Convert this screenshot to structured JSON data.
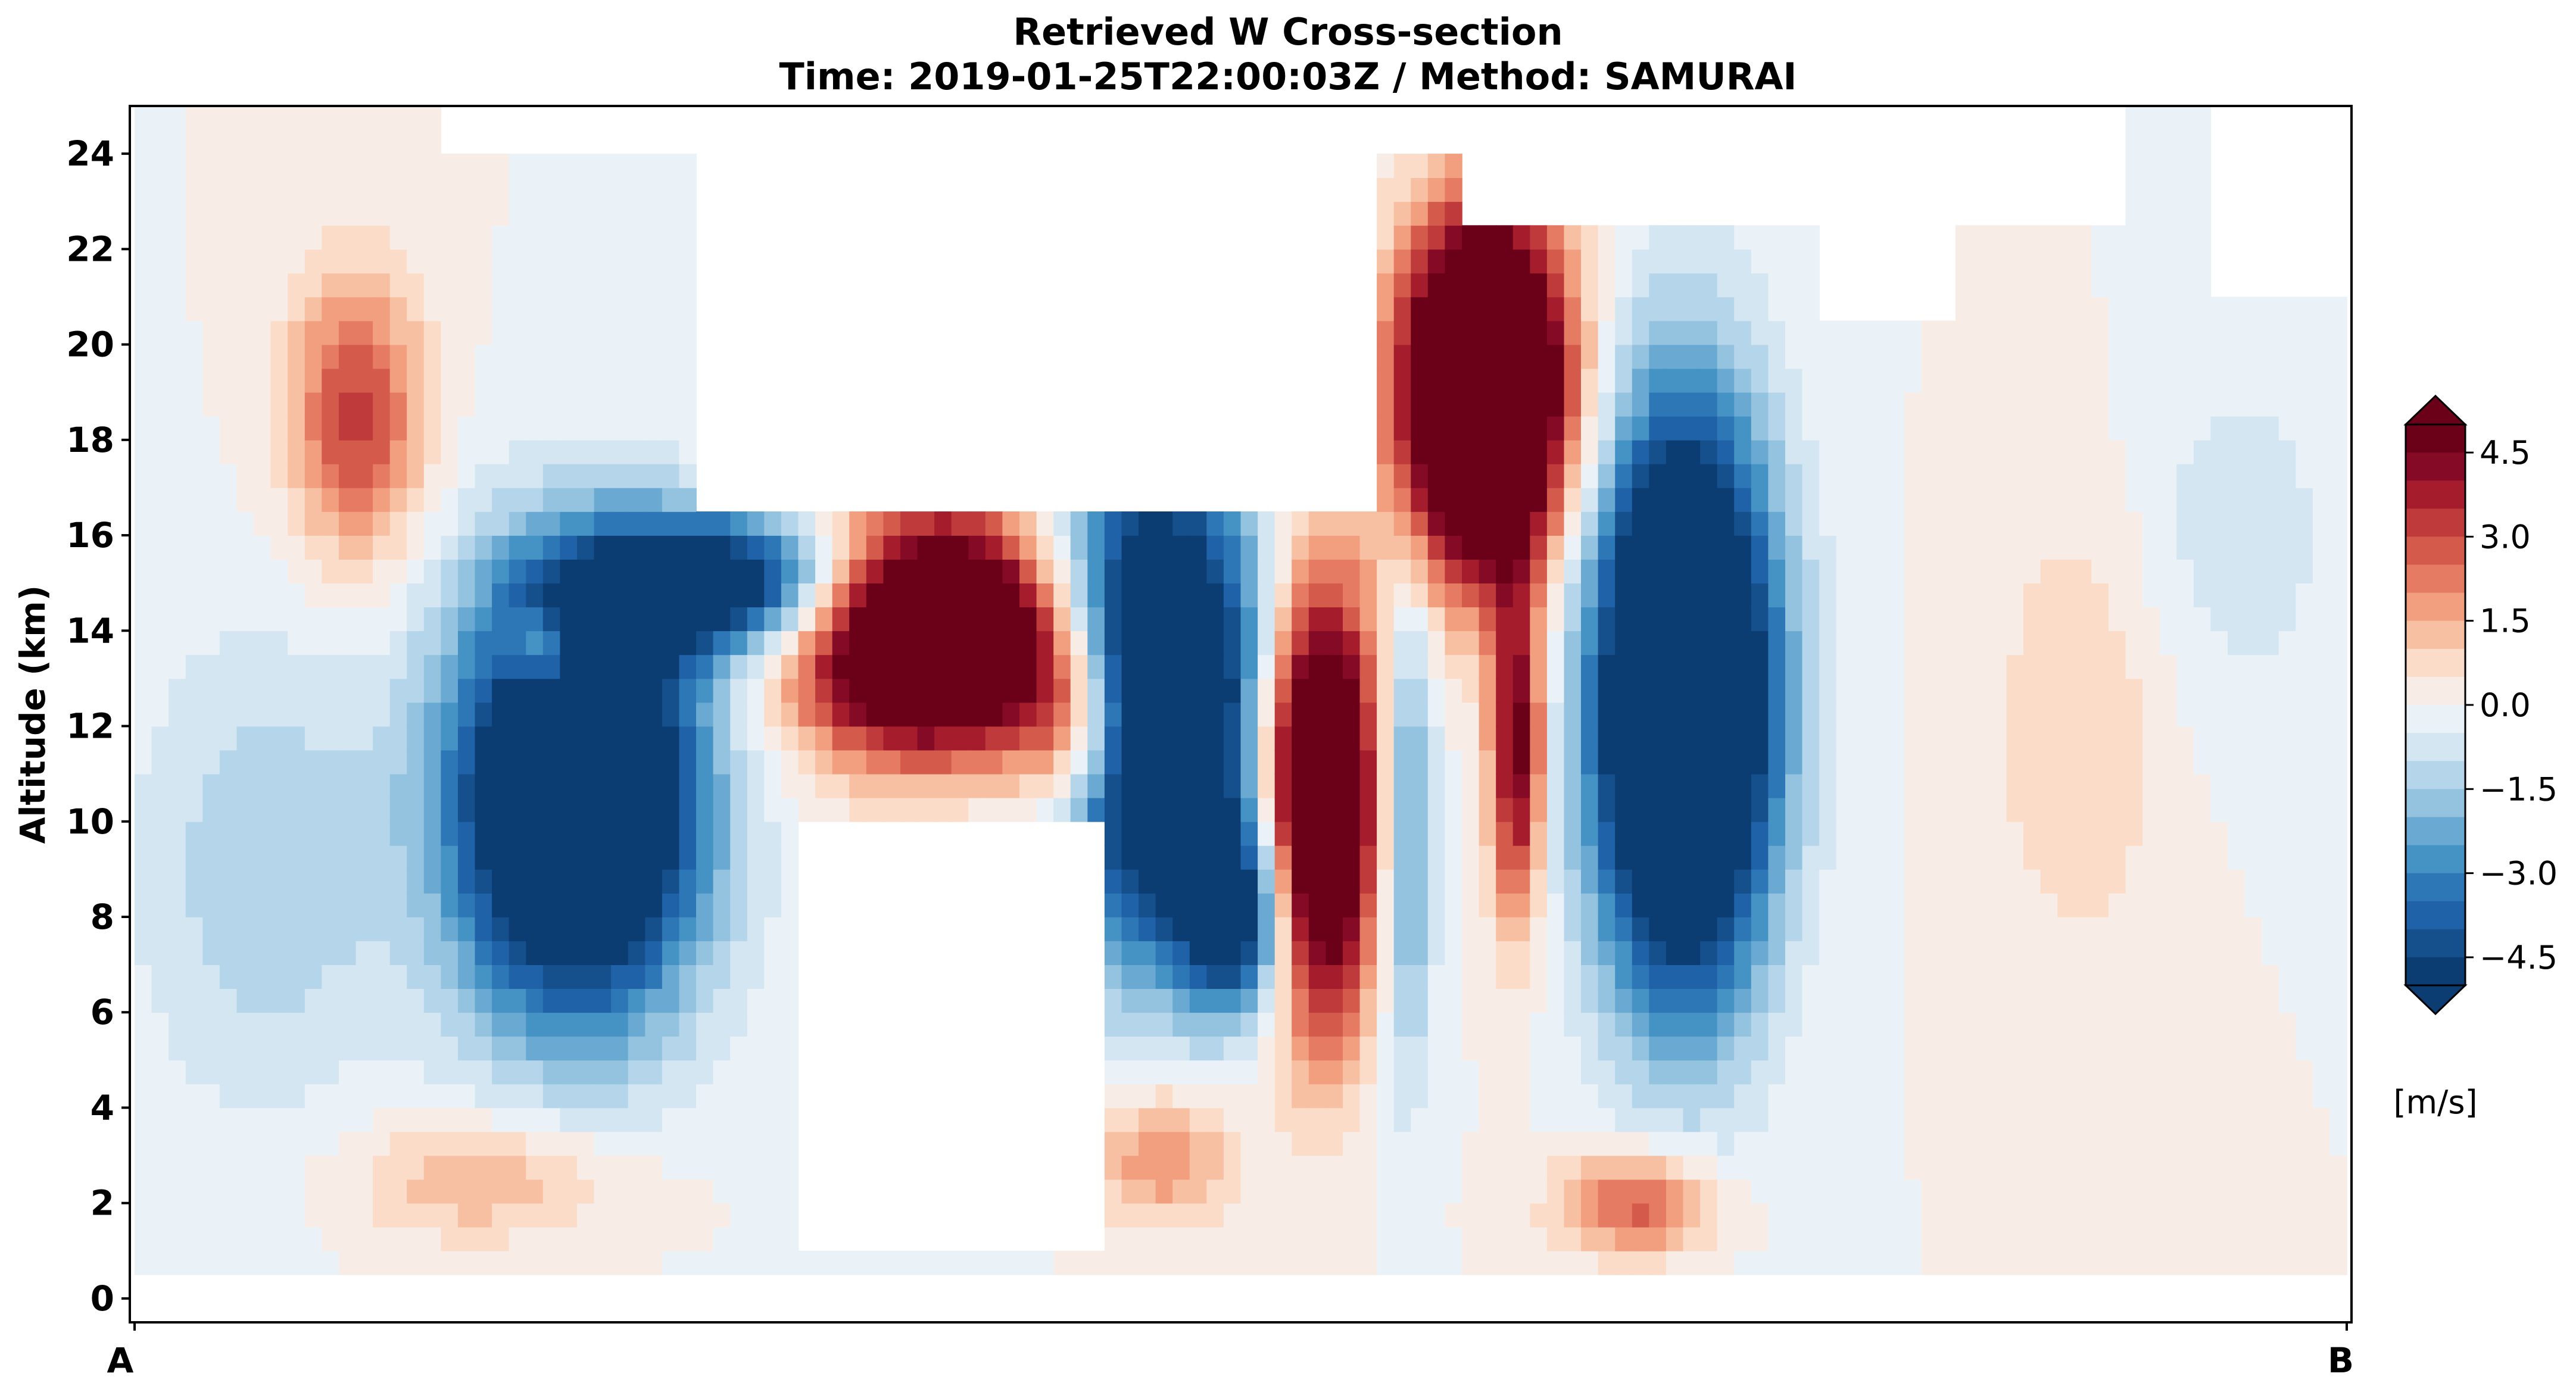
{
  "chart_data": {
    "type": "heatmap",
    "title": "Retrieved W Cross-section",
    "subtitle": "Time: 2019-01-25T22:00:03Z / Method: SAMURAI",
    "xlabel": "",
    "ylabel": "Altitude (km)",
    "x_ticks": [
      "A",
      "B"
    ],
    "y_ticks": [
      0,
      2,
      4,
      6,
      8,
      10,
      12,
      14,
      16,
      18,
      20,
      22,
      24
    ],
    "ylim": [
      -0.5,
      25
    ],
    "grid": false,
    "colorbar": {
      "label": "[m/s]",
      "ticks": [
        "4.5",
        "3.0",
        "1.5",
        "0.0",
        "−1.5",
        "−3.0",
        "−4.5"
      ],
      "tick_values": [
        4.5,
        3.0,
        1.5,
        0.0,
        -1.5,
        -3.0,
        -4.5
      ],
      "range": [
        -5,
        5
      ],
      "levels": 20,
      "extend": "both",
      "colors": [
        "#0b3d73",
        "#154f8c",
        "#1f62a8",
        "#2e77b6",
        "#4592c5",
        "#6aa9d1",
        "#93c3df",
        "#b5d6ea",
        "#d3e6f1",
        "#eaf2f7",
        "#f8ede6",
        "#fbdcc8",
        "#f8c0a3",
        "#f29f80",
        "#e57b62",
        "#d45a4b",
        "#be3a3b",
        "#a51d2d",
        "#840a25",
        "#6b0019"
      ]
    },
    "features": [
      {
        "kind": "downdraft",
        "x_frac": 0.2,
        "z_km": 10.5,
        "w": -5.0
      },
      {
        "kind": "updraft",
        "x_frac": 0.36,
        "z_km": 14.2,
        "w": 5.0
      },
      {
        "kind": "downdraft",
        "x_frac": 0.46,
        "z_km": 11.0,
        "w": -5.0
      },
      {
        "kind": "updraft",
        "x_frac": 0.54,
        "z_km": 11.0,
        "w": 5.0
      },
      {
        "kind": "updraft",
        "x_frac": 0.61,
        "z_km": 17.5,
        "w": 5.0
      },
      {
        "kind": "downdraft",
        "x_frac": 0.7,
        "z_km": 12.0,
        "w": -5.0
      },
      {
        "kind": "updraft",
        "x_frac": 0.68,
        "z_km": 2.0,
        "w": 2.5
      },
      {
        "kind": "updraft",
        "x_frac": 0.465,
        "z_km": 3.0,
        "w": 2.0
      }
    ]
  }
}
